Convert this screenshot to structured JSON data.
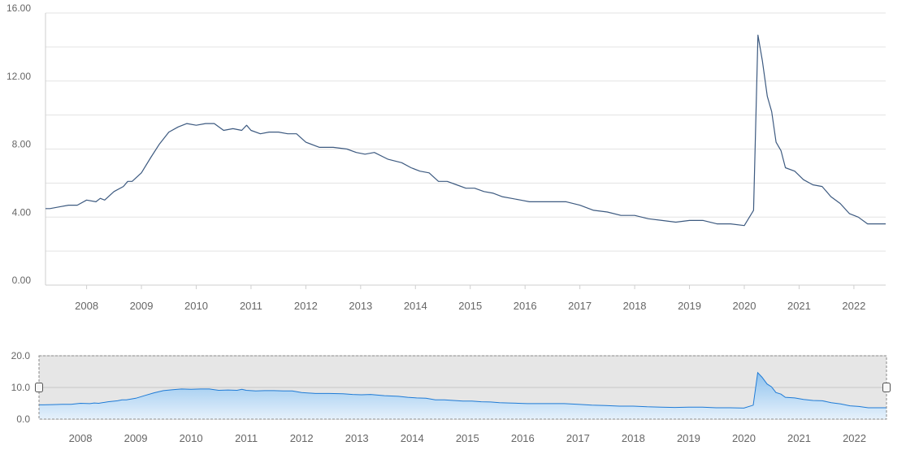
{
  "colors": {
    "main_line": "#3d5a80",
    "nav_line": "#1f7bd6",
    "nav_fill_top": "#8ec2ee",
    "nav_fill_bottom": "#e6f1fb",
    "grid": "#e3e3e3",
    "nav_background": "#e6e6e6",
    "tick_text": "#666666"
  },
  "navigator": {
    "handle_left_icon": "handle-icon",
    "handle_right_icon": "handle-icon"
  },
  "chart_data": [
    {
      "type": "line",
      "role": "main",
      "title": "",
      "xlabel": "",
      "ylabel": "",
      "xlim": [
        2007.25,
        2022.58
      ],
      "ylim": [
        0,
        16
      ],
      "grid": true,
      "y_ticks": [
        "0.00",
        "4.00",
        "8.00",
        "12.00",
        "16.00"
      ],
      "y_tick_values": [
        0,
        4,
        8,
        12,
        16
      ],
      "x_ticks": [
        "2008",
        "2009",
        "2010",
        "2011",
        "2012",
        "2013",
        "2014",
        "2015",
        "2016",
        "2017",
        "2018",
        "2019",
        "2020",
        "2021",
        "2022"
      ],
      "series": [
        {
          "x": [
            2007.25,
            2007.33,
            2007.5,
            2007.67,
            2007.83,
            2008.0,
            2008.17,
            2008.25,
            2008.33,
            2008.5,
            2008.67,
            2008.75,
            2008.83,
            2009.0,
            2009.17,
            2009.33,
            2009.5,
            2009.67,
            2009.83,
            2010.0,
            2010.17,
            2010.33,
            2010.5,
            2010.67,
            2010.83,
            2010.92,
            2011.0,
            2011.17,
            2011.33,
            2011.5,
            2011.67,
            2011.83,
            2012.0,
            2012.25,
            2012.5,
            2012.75,
            2012.92,
            2013.08,
            2013.25,
            2013.5,
            2013.75,
            2013.92,
            2014.08,
            2014.25,
            2014.42,
            2014.58,
            2014.75,
            2014.92,
            2015.08,
            2015.25,
            2015.42,
            2015.58,
            2015.75,
            2015.92,
            2016.08,
            2016.25,
            2016.5,
            2016.75,
            2017.0,
            2017.25,
            2017.5,
            2017.75,
            2018.0,
            2018.25,
            2018.5,
            2018.75,
            2019.0,
            2019.25,
            2019.5,
            2019.75,
            2020.0,
            2020.17,
            2020.25,
            2020.33,
            2020.42,
            2020.5,
            2020.58,
            2020.67,
            2020.75,
            2020.92,
            2021.08,
            2021.25,
            2021.42,
            2021.58,
            2021.75,
            2021.92,
            2022.08,
            2022.25,
            2022.58
          ],
          "values": [
            4.5,
            4.5,
            4.6,
            4.7,
            4.7,
            5.0,
            4.9,
            5.1,
            5.0,
            5.5,
            5.8,
            6.1,
            6.1,
            6.6,
            7.5,
            8.3,
            9.0,
            9.3,
            9.5,
            9.4,
            9.5,
            9.5,
            9.1,
            9.2,
            9.1,
            9.4,
            9.1,
            8.9,
            9.0,
            9.0,
            8.9,
            8.9,
            8.4,
            8.1,
            8.1,
            8.0,
            7.8,
            7.7,
            7.8,
            7.4,
            7.2,
            6.9,
            6.7,
            6.6,
            6.1,
            6.1,
            5.9,
            5.7,
            5.7,
            5.5,
            5.4,
            5.2,
            5.1,
            5.0,
            4.9,
            4.9,
            4.9,
            4.9,
            4.7,
            4.4,
            4.3,
            4.1,
            4.1,
            3.9,
            3.8,
            3.7,
            3.8,
            3.8,
            3.6,
            3.6,
            3.5,
            4.4,
            14.7,
            13.2,
            11.1,
            10.2,
            8.4,
            7.9,
            6.9,
            6.7,
            6.2,
            5.9,
            5.8,
            5.2,
            4.8,
            4.2,
            4.0,
            3.6,
            3.6
          ]
        }
      ]
    },
    {
      "type": "area",
      "role": "navigator",
      "title": "",
      "xlabel": "",
      "ylabel": "",
      "xlim": [
        2007.25,
        2022.58
      ],
      "ylim": [
        0,
        20
      ],
      "grid": true,
      "y_ticks": [
        "0.0",
        "10.0",
        "20.0"
      ],
      "y_tick_values": [
        0,
        10,
        20
      ],
      "x_ticks": [
        "2008",
        "2009",
        "2010",
        "2011",
        "2012",
        "2013",
        "2014",
        "2015",
        "2016",
        "2017",
        "2018",
        "2019",
        "2020",
        "2021",
        "2022"
      ],
      "series_ref": "same as main series"
    }
  ]
}
